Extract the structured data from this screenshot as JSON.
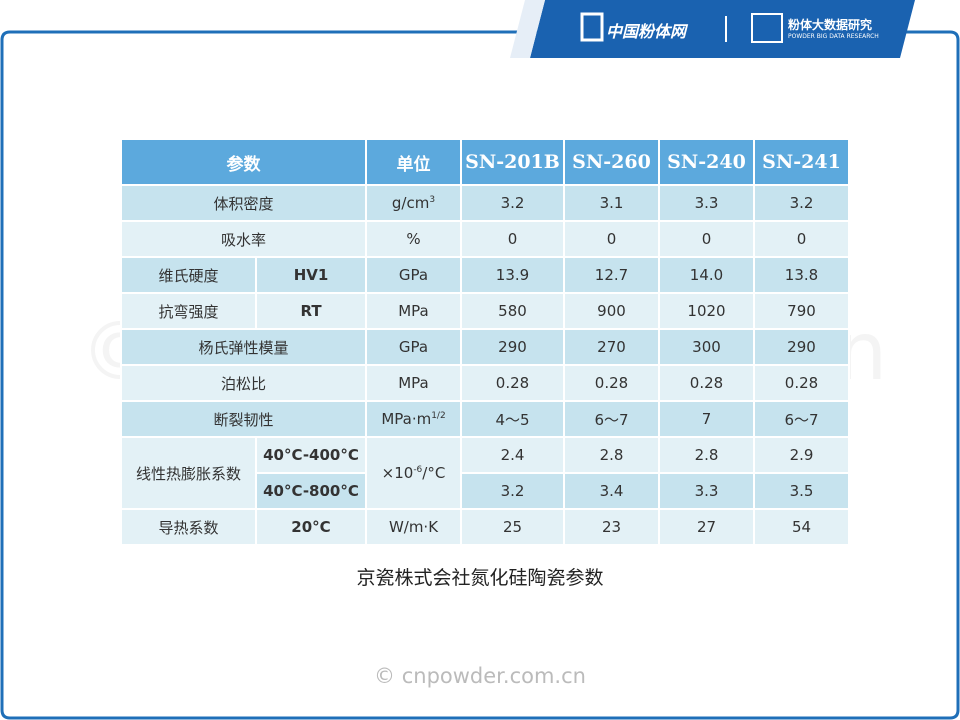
{
  "brand": {
    "name": "中国粉体网",
    "research": "粉体大数据研究",
    "research_en": "POWDER BIG DATA RESEARCH"
  },
  "table": {
    "header": [
      "参数",
      "单位",
      "SN-201B",
      "SN-260",
      "SN-240",
      "SN-241"
    ],
    "rows": [
      {
        "param": "体积密度",
        "unit": {
          "base": "g/cm",
          "sup": "3"
        },
        "values": [
          "3.2",
          "3.1",
          "3.3",
          "3.2"
        ]
      },
      {
        "param": "吸水率",
        "unit": {
          "base": "%"
        },
        "values": [
          "0",
          "0",
          "0",
          "0"
        ]
      },
      {
        "param": "维氏硬度",
        "sub": "HV1",
        "unit": {
          "base": "GPa"
        },
        "values": [
          "13.9",
          "12.7",
          "14.0",
          "13.8"
        ]
      },
      {
        "param": "抗弯强度",
        "sub": "RT",
        "unit": {
          "base": "MPa"
        },
        "values": [
          "580",
          "900",
          "1020",
          "790"
        ]
      },
      {
        "param": "杨氏弹性模量",
        "unit": {
          "base": "GPa"
        },
        "values": [
          "290",
          "270",
          "300",
          "290"
        ]
      },
      {
        "param": "泊松比",
        "unit": {
          "base": "MPa"
        },
        "values": [
          "0.28",
          "0.28",
          "0.28",
          "0.28"
        ]
      },
      {
        "param": "断裂韧性",
        "unit": {
          "base": "MPa·m",
          "sup": "1/2"
        },
        "values": [
          "4～5",
          "6～7",
          "7",
          "6～7"
        ]
      },
      {
        "param": "线性热膨胀系数",
        "unit": {
          "base": "×10",
          "sup": "-6",
          "tail": "/°C"
        },
        "subrows": [
          {
            "sub": "40°C-400°C",
            "values": [
              "2.4",
              "2.8",
              "2.8",
              "2.9"
            ]
          },
          {
            "sub": "40°C-800°C",
            "values": [
              "3.2",
              "3.4",
              "3.3",
              "3.5"
            ]
          }
        ]
      },
      {
        "param": "导热系数",
        "sub": "20°C",
        "unit": {
          "base": "W/m·K"
        },
        "values": [
          "25",
          "23",
          "27",
          "54"
        ]
      }
    ]
  },
  "caption": "京瓷株式会社氮化硅陶瓷参数",
  "watermark": "© cnpowder.com.cn"
}
